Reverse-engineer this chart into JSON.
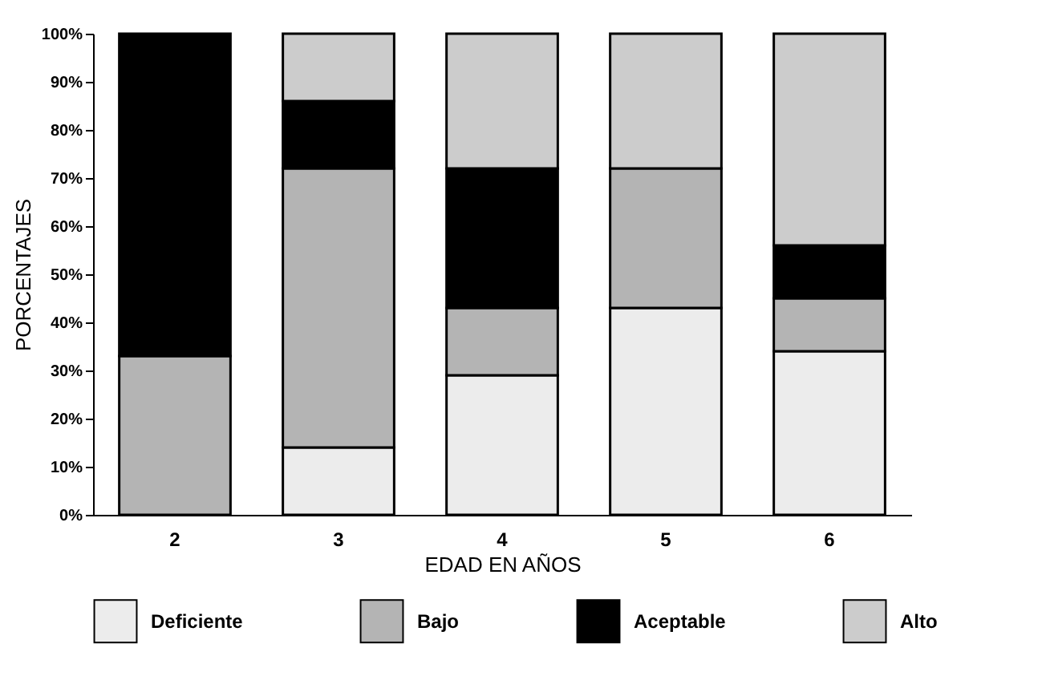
{
  "chart_data": {
    "type": "bar",
    "stacked": true,
    "xlabel": "EDAD EN AÑOS",
    "ylabel": "PORCENTAJES",
    "categories": [
      "2",
      "3",
      "4",
      "5",
      "6"
    ],
    "series": [
      {
        "name": "Deficiente",
        "color": "#ececec",
        "values": [
          0,
          14,
          29,
          43,
          34
        ]
      },
      {
        "name": "Bajo",
        "color": "#b4b4b4",
        "values": [
          33,
          58,
          14,
          29,
          11
        ]
      },
      {
        "name": "Aceptable",
        "color": "#000000",
        "values": [
          67,
          14,
          29,
          0,
          11
        ]
      },
      {
        "name": "Alto",
        "color": "#cccccc",
        "values": [
          0,
          14,
          28,
          28,
          44
        ]
      }
    ],
    "ylim": [
      0,
      100
    ],
    "yticks": [
      {
        "value": 0,
        "label": "0%"
      },
      {
        "value": 10,
        "label": "10%"
      },
      {
        "value": 20,
        "label": "20%"
      },
      {
        "value": 30,
        "label": "30%"
      },
      {
        "value": 40,
        "label": "40%"
      },
      {
        "value": 50,
        "label": "50%"
      },
      {
        "value": 60,
        "label": "60%"
      },
      {
        "value": 70,
        "label": "70%"
      },
      {
        "value": 80,
        "label": "80%"
      },
      {
        "value": 90,
        "label": "90%"
      },
      {
        "value": 100,
        "label": "100%"
      }
    ],
    "grid": false,
    "legend": "bottom"
  }
}
